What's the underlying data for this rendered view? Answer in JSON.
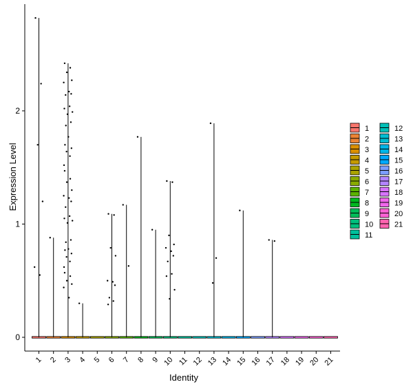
{
  "chart_data": {
    "type": "violin",
    "title": "",
    "xlabel": "Identity",
    "ylabel": "Expression Level",
    "ylim": [
      -0.13,
      2.85
    ],
    "yticks": [
      0,
      1,
      2
    ],
    "grid": false,
    "legend_position": "right",
    "categories": [
      "1",
      "2",
      "3",
      "4",
      "5",
      "6",
      "7",
      "8",
      "9",
      "10",
      "11",
      "12",
      "13",
      "14",
      "15",
      "16",
      "17",
      "18",
      "19",
      "20",
      "21"
    ],
    "colors": [
      "#F8766D",
      "#EB8335",
      "#DA8F00",
      "#C49A00",
      "#AAA300",
      "#8AAB00",
      "#5BB300",
      "#00B81F",
      "#00BC59",
      "#00BF7D",
      "#00C19C",
      "#00C0B8",
      "#00BCD1",
      "#00B5E7",
      "#00A9FF",
      "#7C9DFF",
      "#B385FF",
      "#D774FD",
      "#EF67EB",
      "#FD61D3",
      "#FF64B0"
    ],
    "max_values": [
      2.82,
      0.88,
      2.42,
      0.3,
      0.0,
      1.09,
      1.17,
      1.77,
      0.95,
      1.38,
      0.0,
      0.0,
      1.89,
      0.0,
      1.12,
      0.0,
      0.86,
      0.0,
      0.0,
      0.0,
      0.0
    ],
    "points": [
      {
        "category": "1",
        "values": [
          2.82,
          2.24,
          1.7,
          1.2,
          0.62,
          0.55
        ]
      },
      {
        "category": "2",
        "values": [
          0.88
        ]
      },
      {
        "category": "3",
        "values": [
          2.42,
          2.38,
          2.34,
          2.27,
          2.25,
          2.17,
          2.15,
          2.14,
          2.04,
          2.02,
          1.99,
          1.97,
          1.9,
          1.87,
          1.77,
          1.7,
          1.67,
          1.64,
          1.6,
          1.52,
          1.47,
          1.4,
          1.37,
          1.3,
          1.25,
          1.23,
          1.2,
          1.15,
          1.07,
          1.05,
          1.03,
          1.01,
          0.86,
          0.84,
          0.78,
          0.77,
          0.74,
          0.71,
          0.67,
          0.62,
          0.57,
          0.54,
          0.5,
          0.47,
          0.44,
          0.35
        ]
      },
      {
        "category": "4",
        "values": [
          0.3
        ]
      },
      {
        "category": "6",
        "values": [
          1.09,
          1.08,
          0.79,
          0.72,
          0.5,
          0.49,
          0.46,
          0.35,
          0.32,
          0.29
        ]
      },
      {
        "category": "7",
        "values": [
          1.17,
          0.63
        ]
      },
      {
        "category": "8",
        "values": [
          1.77
        ]
      },
      {
        "category": "9",
        "values": [
          0.95
        ]
      },
      {
        "category": "10",
        "values": [
          1.38,
          1.37,
          0.9,
          0.82,
          0.79,
          0.76,
          0.72,
          0.67,
          0.56,
          0.54,
          0.42,
          0.34
        ]
      },
      {
        "category": "13",
        "values": [
          1.89,
          0.7,
          0.48
        ]
      },
      {
        "category": "15",
        "values": [
          1.12
        ]
      },
      {
        "category": "17",
        "values": [
          0.86,
          0.85
        ]
      }
    ]
  }
}
